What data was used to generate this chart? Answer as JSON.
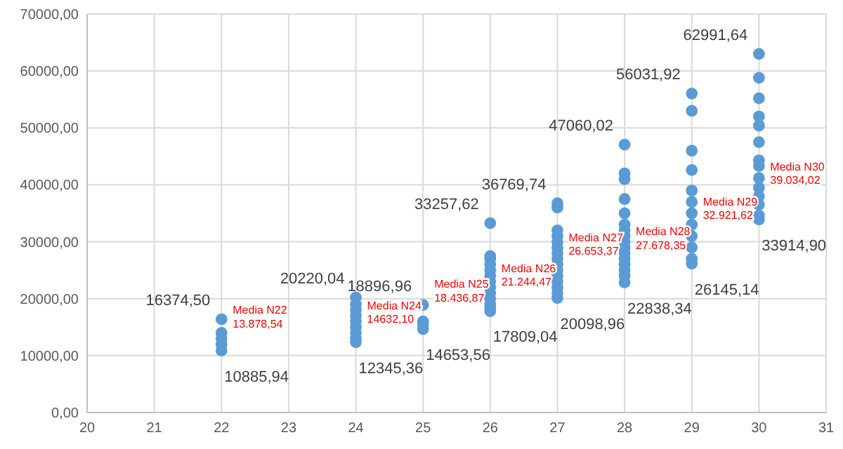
{
  "chart_data": {
    "type": "scatter",
    "marker": "circle",
    "grid": true,
    "xlim": [
      20,
      31
    ],
    "xticks": [
      20,
      21,
      22,
      23,
      24,
      25,
      26,
      27,
      28,
      29,
      30,
      31
    ],
    "ylim": [
      0,
      70000
    ],
    "yticks": [
      {
        "value": 0,
        "label": "0,00"
      },
      {
        "value": 10000,
        "label": "10000,00"
      },
      {
        "value": 20000,
        "label": "20000,00"
      },
      {
        "value": 30000,
        "label": "30000,00"
      },
      {
        "value": 40000,
        "label": "40000,00"
      },
      {
        "value": 50000,
        "label": "50000,00"
      },
      {
        "value": 60000,
        "label": "60000,00"
      },
      {
        "value": 70000,
        "label": "70000,00"
      }
    ],
    "series": [
      {
        "color": "#5b9bd5",
        "x": [
          22,
          22,
          22,
          22,
          22,
          24,
          24,
          24,
          24,
          24,
          24,
          24,
          24,
          24,
          25,
          25,
          25,
          25,
          26,
          26,
          26,
          26,
          26,
          26,
          26,
          26,
          26,
          26,
          26,
          26,
          26,
          27,
          27,
          27,
          27,
          27,
          27,
          27,
          27,
          27,
          27,
          27,
          27,
          27,
          27,
          27,
          28,
          28,
          28,
          28,
          28,
          28,
          28,
          28,
          28,
          28,
          28,
          28,
          28,
          28,
          28,
          28,
          29,
          29,
          29,
          29,
          29,
          29,
          29,
          29,
          29,
          29,
          29,
          29,
          30,
          30,
          30,
          30,
          30,
          30,
          30,
          30,
          30,
          30,
          30,
          30,
          30,
          30
        ],
        "values": [
          16374.5,
          14000,
          13000,
          12000,
          10885.94,
          20220.04,
          19000,
          18000,
          17000,
          16000,
          15000,
          14000,
          13000,
          12345.36,
          18896.96,
          16000,
          15500,
          14653.56,
          33257.62,
          27500,
          27000,
          26000,
          25000,
          24000,
          23000,
          22000,
          21000,
          20000,
          19000,
          18500,
          17809.04,
          36769.74,
          36000,
          32000,
          31000,
          30000,
          29000,
          28000,
          27000,
          26000,
          25000,
          24000,
          23000,
          22000,
          21000,
          20098.96,
          47060.02,
          42000,
          41000,
          37500,
          35000,
          33000,
          32000,
          31000,
          30000,
          29000,
          28000,
          27000,
          26000,
          25000,
          24000,
          22838.34,
          56031.92,
          53000,
          46000,
          42600,
          39000,
          37000,
          35000,
          33000,
          31000,
          29000,
          27000,
          26145.14,
          62991.64,
          58800,
          55200,
          52000,
          50400,
          47500,
          44300,
          43300,
          41200,
          39500,
          38000,
          36500,
          34600,
          33914.9
        ]
      }
    ],
    "annotations": [
      {
        "text": "16374,50",
        "x": 22,
        "y": 16374.5
      },
      {
        "text": "10885,94",
        "x": 22,
        "y": 10885.94
      },
      {
        "text": "Media N22\n13.878,54",
        "x": 22,
        "y": 13878.54
      },
      {
        "text": "20220,04",
        "x": 24,
        "y": 20220.04
      },
      {
        "text": "12345,36",
        "x": 24,
        "y": 12345.36
      },
      {
        "text": "Media N24\n14632,10",
        "x": 24,
        "y": 14632.1
      },
      {
        "text": "18896,96",
        "x": 25,
        "y": 18896.96
      },
      {
        "text": "14653,56",
        "x": 25,
        "y": 14653.56
      },
      {
        "text": "Media N25\n18.436,87",
        "x": 25,
        "y": 18436.87
      },
      {
        "text": "33257,62",
        "x": 26,
        "y": 33257.62
      },
      {
        "text": "17809,04",
        "x": 26,
        "y": 17809.04
      },
      {
        "text": "Media N26\n21.244,47",
        "x": 26,
        "y": 21244.47
      },
      {
        "text": "36769,74",
        "x": 27,
        "y": 36769.74
      },
      {
        "text": "20098,96",
        "x": 27,
        "y": 20098.96
      },
      {
        "text": "Media N27\n26.653,37",
        "x": 27,
        "y": 26653.37
      },
      {
        "text": "47060,02",
        "x": 28,
        "y": 47060.02
      },
      {
        "text": "22838,34",
        "x": 28,
        "y": 22838.34
      },
      {
        "text": "Media N28\n27.678,35",
        "x": 28,
        "y": 27678.35
      },
      {
        "text": "56031,92",
        "x": 29,
        "y": 56031.92
      },
      {
        "text": "26145,14",
        "x": 29,
        "y": 26145.14
      },
      {
        "text": "Media N29\n32.921,62",
        "x": 29,
        "y": 32921.62
      },
      {
        "text": "62991,64",
        "x": 30,
        "y": 62991.64
      },
      {
        "text": "33914,90",
        "x": 30,
        "y": 33914.9
      },
      {
        "text": "Media N30\n39.034,02",
        "x": 30,
        "y": 39034.02
      }
    ]
  }
}
